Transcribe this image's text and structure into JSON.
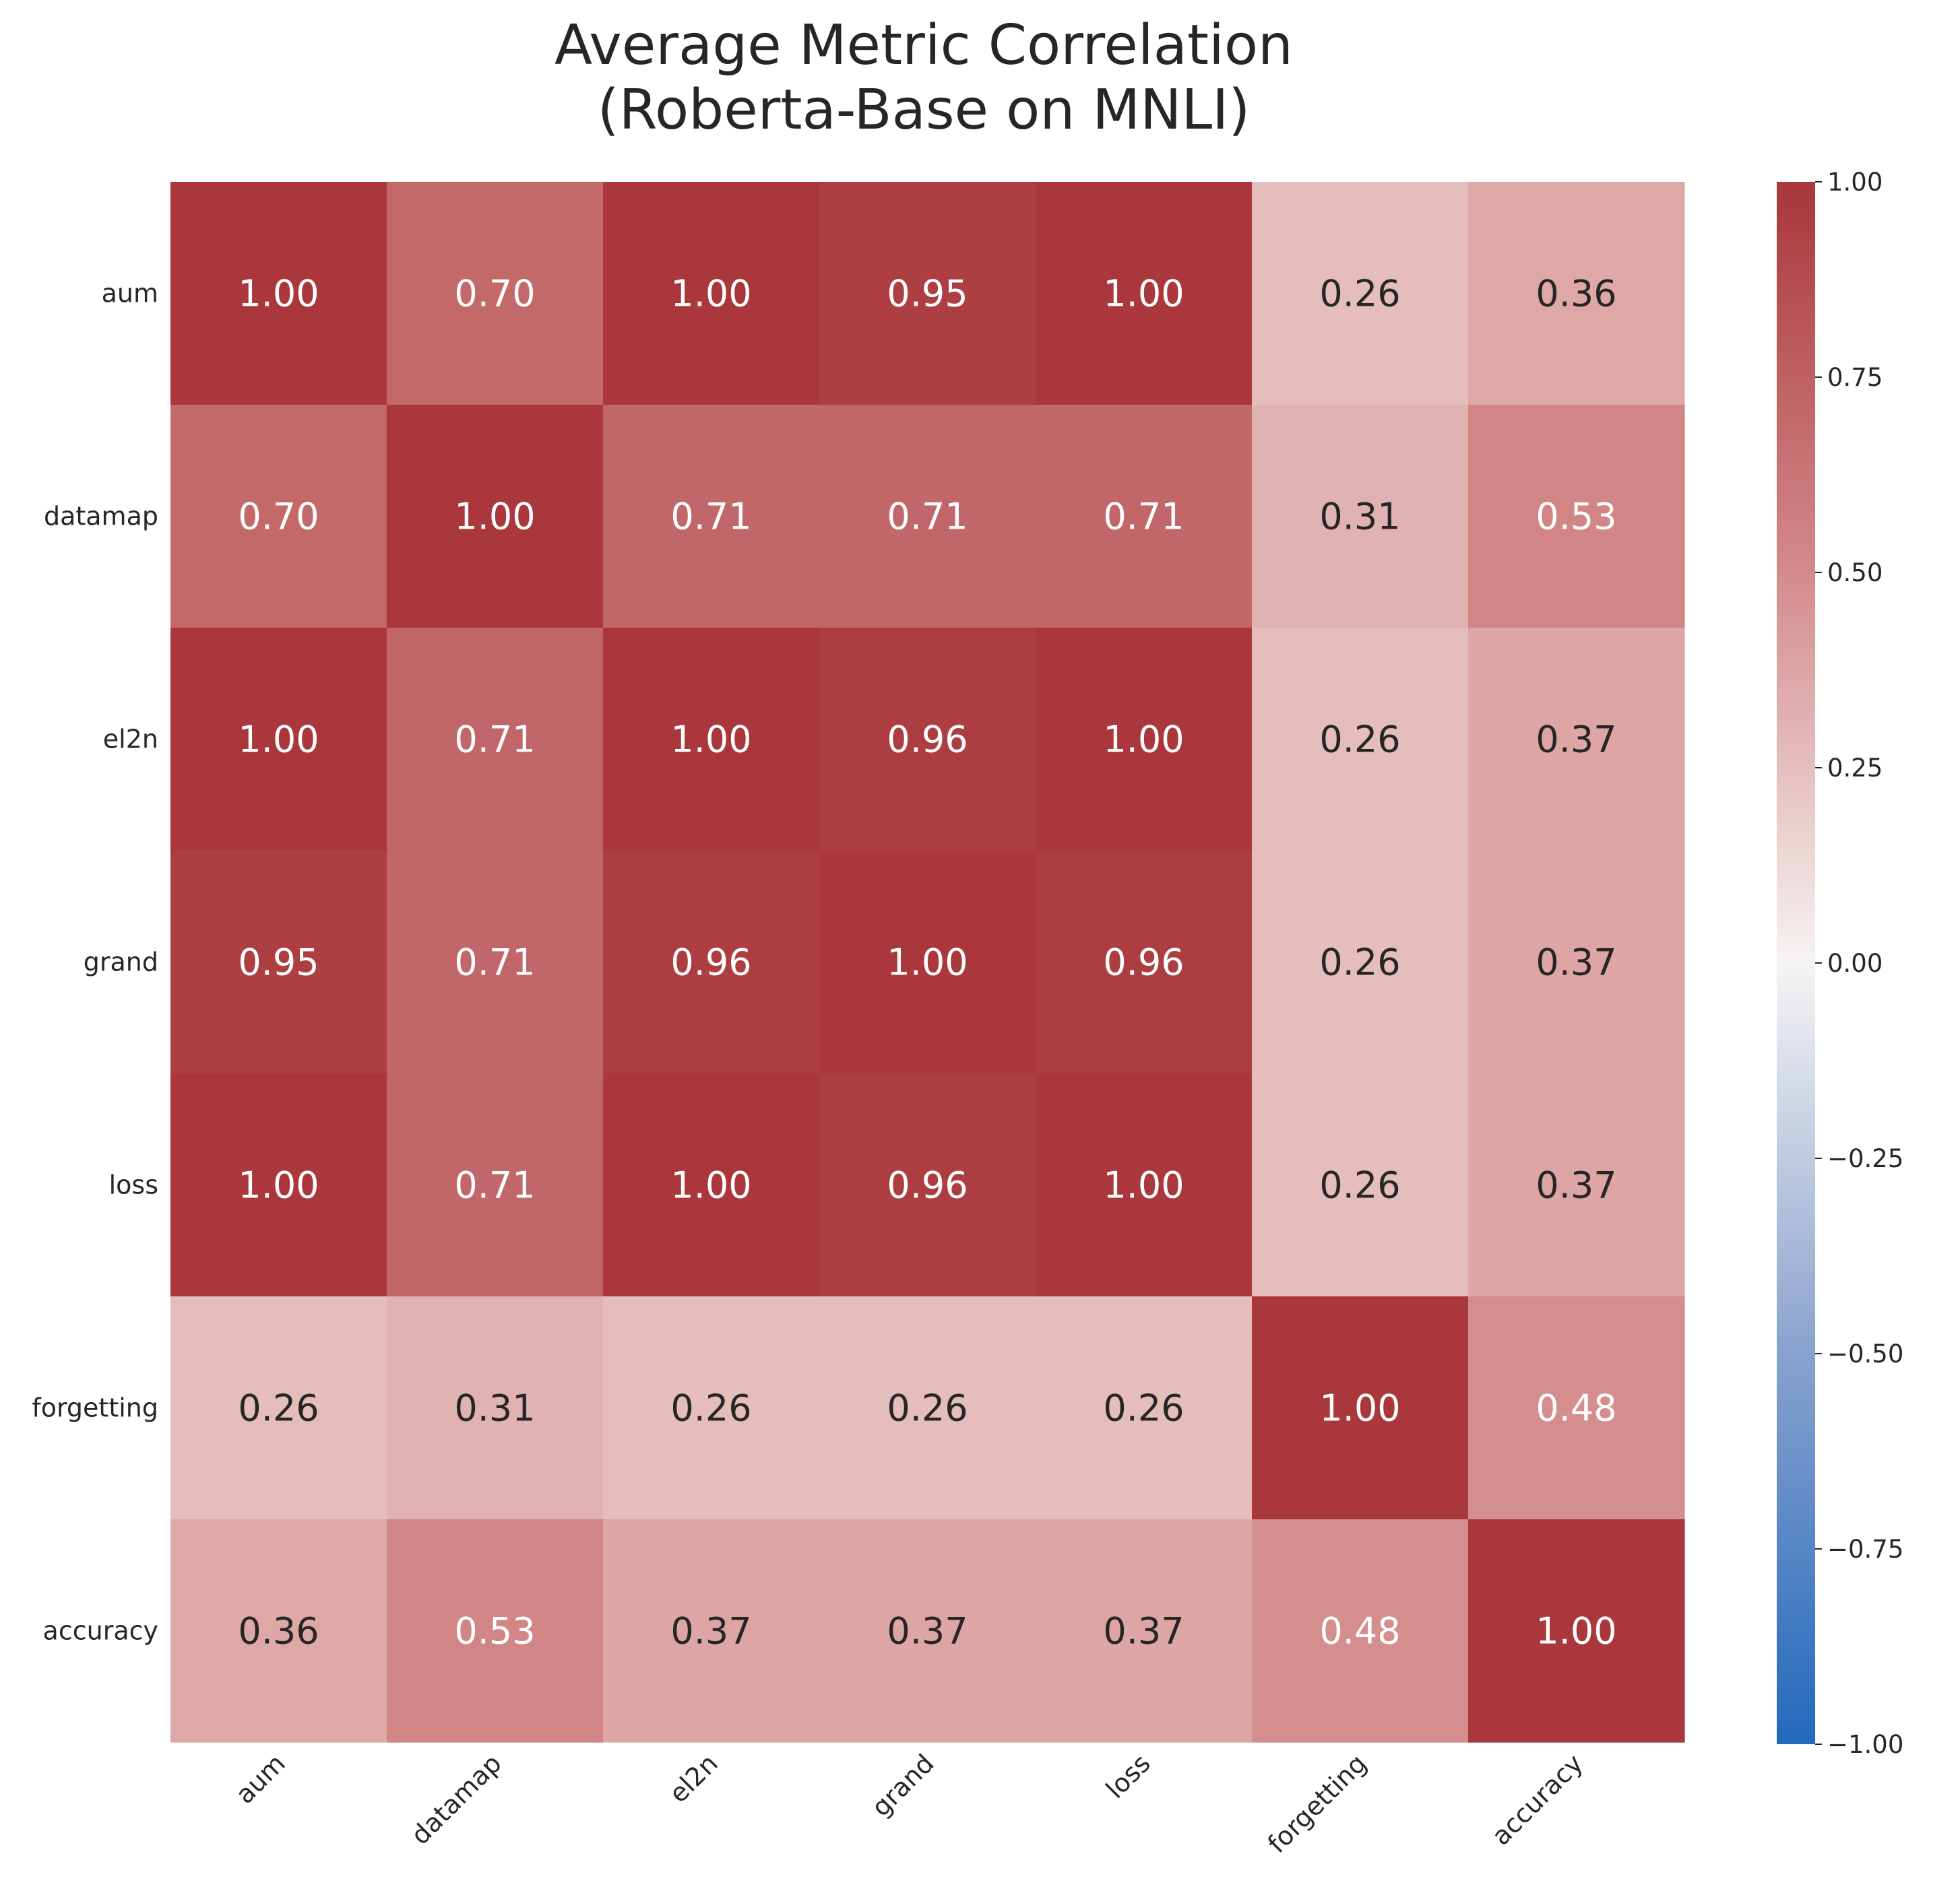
{
  "chart_data": {
    "type": "heatmap",
    "title": "Average Metric Correlation\n(Roberta-Base on MNLI)",
    "row_labels": [
      "aum",
      "datamap",
      "el2n",
      "grand",
      "loss",
      "forgetting",
      "accuracy"
    ],
    "col_labels": [
      "aum",
      "datamap",
      "el2n",
      "grand",
      "loss",
      "forgetting",
      "accuracy"
    ],
    "values": [
      [
        1.0,
        0.7,
        1.0,
        0.95,
        1.0,
        0.26,
        0.36
      ],
      [
        0.7,
        1.0,
        0.71,
        0.71,
        0.71,
        0.31,
        0.53
      ],
      [
        1.0,
        0.71,
        1.0,
        0.96,
        1.0,
        0.26,
        0.37
      ],
      [
        0.95,
        0.71,
        0.96,
        1.0,
        0.96,
        0.26,
        0.37
      ],
      [
        1.0,
        0.71,
        1.0,
        0.96,
        1.0,
        0.26,
        0.37
      ],
      [
        0.26,
        0.31,
        0.26,
        0.26,
        0.26,
        1.0,
        0.48
      ],
      [
        0.36,
        0.53,
        0.37,
        0.37,
        0.37,
        0.48,
        1.0
      ]
    ],
    "value_format": "0.00",
    "colormap": "vlag",
    "vmin": -1.0,
    "vmax": 1.0,
    "colorbar_ticks": [
      "1.00",
      "0.75",
      "0.50",
      "0.25",
      "0.00",
      "−0.25",
      "−0.50",
      "−0.75",
      "−1.00"
    ],
    "colorbar_tick_values": [
      1.0,
      0.75,
      0.5,
      0.25,
      0.0,
      -0.25,
      -0.5,
      -0.75,
      -1.0
    ],
    "colorbar_position": "right",
    "x_tick_rotation": 45,
    "grid": false,
    "colors": {
      "low": "#2369bd",
      "mid": "#f6f4f3",
      "high": "#a9373b",
      "text_dark": "#262626",
      "text_light": "#ffffff"
    }
  }
}
